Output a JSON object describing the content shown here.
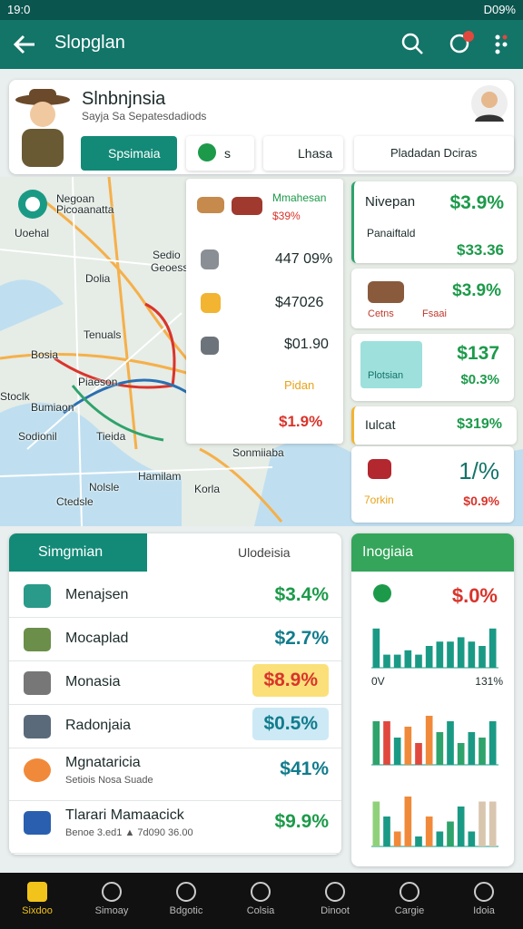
{
  "status_bar": {
    "time": "19:0",
    "battery": "D09%"
  },
  "app_bar": {
    "title": "Slopglan"
  },
  "profile": {
    "name": "Slnbnjnsia",
    "subtitle": "Sayja Sa Sepatesdadiods"
  },
  "filters": [
    "Spsimaia",
    "s",
    "Lhasa",
    "Pladadan Dciras"
  ],
  "map": {
    "labels": [
      "Negoan",
      "Picoaanatta",
      "Uoehal",
      "Sedio",
      "Geoessia",
      "Dolia",
      "Tenuals",
      "Bosia",
      "Piaeson",
      "Stoclk",
      "Bumiaon",
      "Sodionil",
      "Tieida",
      "Sonmiiaba",
      "Hamilam",
      "Nolsle",
      "Korla",
      "Ctedsle"
    ]
  },
  "map_popup": {
    "title": "Mmahesan",
    "subtitle": "$39%",
    "rows": [
      "447 09%",
      "$47026",
      "$01.90"
    ],
    "footer": "Pidan",
    "total": "$1.9%"
  },
  "side_list": [
    {
      "name": "Nivepan",
      "value": "$3.9%"
    },
    {
      "name": "Panaiftald",
      "value": "$33.36"
    },
    {
      "name": "Cetns",
      "tag": "Fsaai",
      "value": "$3.9%"
    },
    {
      "name": "Plotsian",
      "value": "$137",
      "sub": "$0.3%"
    },
    {
      "name": "Iulcat",
      "value": "$319%"
    },
    {
      "name": "7orkin",
      "value": "1/%",
      "sub": "$0.9%"
    }
  ],
  "list_card": {
    "tab": "Simgmian",
    "tab2": "Ulodeisia",
    "rows": [
      {
        "name": "Menajsen",
        "value": "$3.4%"
      },
      {
        "name": "Mocaplad",
        "value": "$2.7%"
      },
      {
        "name": "Monasia",
        "value": "$8.9%"
      },
      {
        "name": "Radonjaia",
        "value": "$0.5%"
      },
      {
        "name": "Mgnataricia",
        "sub": "Setiois Nosa Suade",
        "value": "$41%"
      },
      {
        "name": "Tlarari Mamaacick",
        "sub": "Benoe 3.ed1 ▲ 7d090 36.00",
        "value": "$9.9%"
      }
    ]
  },
  "chart_card": {
    "title": "Inogiaia",
    "value": "$.0%",
    "axis_left": "0V",
    "axis_right": "131%",
    "ylim": [
      0,
      10
    ],
    "charts": [
      {
        "values": [
          9,
          3,
          3,
          4,
          3,
          5,
          6,
          6,
          7,
          6,
          5,
          9
        ],
        "colors": [
          "#1a9a85",
          "#1a9a85",
          "#1a9a85",
          "#1a9a85",
          "#1a9a85",
          "#1a9a85",
          "#1a9a85",
          "#1a9a85",
          "#1a9a85",
          "#1a9a85",
          "#1a9a85",
          "#1a9a85"
        ]
      },
      {
        "values": [
          8,
          8,
          5,
          7,
          4,
          9,
          6,
          8,
          4,
          6,
          5,
          8
        ],
        "colors": [
          "#2ea36b",
          "#e0483e",
          "#1a9a85",
          "#f08a3a",
          "#e0483e",
          "#f08a3a",
          "#2ea36b",
          "#1a9a85",
          "#2ea36b",
          "#1a9a85",
          "#2ea36b",
          "#1a9a85"
        ]
      },
      {
        "values": [
          9,
          6,
          3,
          10,
          2,
          6,
          3,
          5,
          8,
          3,
          9,
          9
        ],
        "colors": [
          "#8fd17a",
          "#1a9a85",
          "#f08a3a",
          "#f08a3a",
          "#1a9a85",
          "#f08a3a",
          "#1a9a85",
          "#2ea36b",
          "#1a9a85",
          "#1a9a85",
          "#d9c6ae",
          "#d9c6ae"
        ]
      }
    ]
  },
  "nav": [
    "Sixdoo",
    "Simoay",
    "Bdgotic",
    "Colsia",
    "Dinoot",
    "Cargie",
    "Idoia"
  ]
}
